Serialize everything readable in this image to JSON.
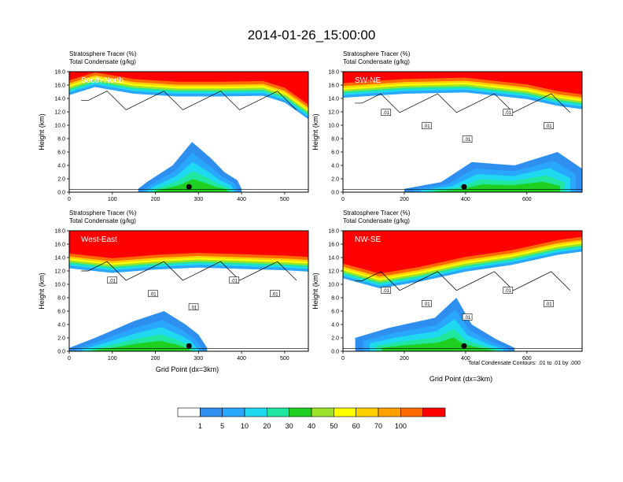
{
  "figure": {
    "title": "2014-01-26_15:00:00",
    "contour_note": "Total Condensate Contours: .01 to .01 by .000"
  },
  "colors": {
    "levels": [
      "#ffffff",
      "#2f8ff0",
      "#29a7ff",
      "#1fd9f0",
      "#20e6a0",
      "#20d020",
      "#9be32b",
      "#ffff00",
      "#ffd000",
      "#ffa000",
      "#ff6a00",
      "#ff0000"
    ]
  },
  "colorbar": {
    "labels": [
      "1",
      "5",
      "10",
      "20",
      "30",
      "40",
      "50",
      "60",
      "70",
      "100"
    ]
  },
  "chart_data": [
    {
      "type": "heatmap",
      "panel_label": "South-North",
      "title_line1": "Stratosphere Tracer   (%)",
      "title_line2": "Total Condensate   (g/kg)",
      "ylabel": "Height (km)",
      "xlabel": "",
      "xlim": [
        0,
        555
      ],
      "ylim": [
        0,
        18
      ],
      "xticks": [
        0,
        100,
        200,
        300,
        400,
        500
      ],
      "yticks": [
        "0.0",
        "2.0",
        "4.0",
        "6.0",
        "8.0",
        "10.0",
        "12.0",
        "14.0",
        "16.0",
        "18.0"
      ],
      "tropopause_km": 15.2,
      "marker_x": 278,
      "contour_labels": [],
      "upper_band": [
        [
          0,
          15.6
        ],
        [
          60,
          16.8
        ],
        [
          150,
          15.8
        ],
        [
          250,
          15.4
        ],
        [
          350,
          15.4
        ],
        [
          450,
          15.5
        ],
        [
          500,
          14.5
        ],
        [
          555,
          12.0
        ]
      ],
      "plume": [
        [
          160,
          0.5
        ],
        [
          180,
          1.5
        ],
        [
          240,
          4.0
        ],
        [
          285,
          7.5
        ],
        [
          330,
          5.0
        ],
        [
          360,
          3.0
        ],
        [
          390,
          1.8
        ],
        [
          400,
          0.5
        ]
      ]
    },
    {
      "type": "heatmap",
      "panel_label": "SW-NE",
      "title_line1": "Stratosphere Tracer   (%)",
      "title_line2": "Total Condensate   (g/kg)",
      "ylabel": "Height (km)",
      "xlabel": "",
      "xlim": [
        0,
        780
      ],
      "ylim": [
        0,
        18
      ],
      "xticks": [
        0,
        200,
        400,
        600
      ],
      "yticks": [
        "0.0",
        "2.0",
        "4.0",
        "6.0",
        "8.0",
        "10.0",
        "12.0",
        "14.0",
        "16.0",
        "18.0"
      ],
      "tropopause_km": 14.8,
      "marker_x": 395,
      "contour_labels": [
        ".01",
        ".01",
        ".01",
        ".01",
        ".01"
      ],
      "upper_band": [
        [
          0,
          15.2
        ],
        [
          200,
          15.8
        ],
        [
          400,
          16.0
        ],
        [
          600,
          15.0
        ],
        [
          700,
          14.0
        ],
        [
          780,
          13.5
        ]
      ],
      "plume": [
        [
          200,
          0.5
        ],
        [
          320,
          1.5
        ],
        [
          420,
          4.5
        ],
        [
          560,
          4.0
        ],
        [
          700,
          6.0
        ],
        [
          780,
          3.5
        ],
        [
          780,
          0.5
        ]
      ]
    },
    {
      "type": "heatmap",
      "panel_label": "West-East",
      "title_line1": "Stratosphere Tracer   (%)",
      "title_line2": "Total Condensate   (g/kg)",
      "ylabel": "Height (km)",
      "xlabel": "Grid Point (dx=3km)",
      "xlim": [
        0,
        555
      ],
      "ylim": [
        0,
        18
      ],
      "xticks": [
        0,
        100,
        200,
        300,
        400,
        500
      ],
      "yticks": [
        "0.0",
        "2.0",
        "4.0",
        "6.0",
        "8.0",
        "10.0",
        "12.0",
        "14.0",
        "16.0",
        "18.0"
      ],
      "tropopause_km": 13.5,
      "marker_x": 278,
      "contour_labels": [
        ".01",
        ".01",
        ".01",
        ".01",
        ".01"
      ],
      "upper_band": [
        [
          0,
          13.5
        ],
        [
          100,
          12.8
        ],
        [
          200,
          13.3
        ],
        [
          300,
          13.6
        ],
        [
          400,
          13.4
        ],
        [
          500,
          13.2
        ],
        [
          555,
          13.0
        ]
      ],
      "plume": [
        [
          0,
          0.5
        ],
        [
          60,
          2.0
        ],
        [
          150,
          4.5
        ],
        [
          220,
          6.0
        ],
        [
          270,
          4.0
        ],
        [
          300,
          2.5
        ],
        [
          320,
          0.5
        ]
      ]
    },
    {
      "type": "heatmap",
      "panel_label": "NW-SE",
      "title_line1": "Stratosphere Tracer   (%)",
      "title_line2": "Total Condensate   (g/kg)",
      "ylabel": "Height (km)",
      "xlabel": "Grid Point (dx=3km)",
      "xlim": [
        0,
        780
      ],
      "ylim": [
        0,
        18
      ],
      "xticks": [
        0,
        200,
        400,
        600
      ],
      "yticks": [
        "0.0",
        "2.0",
        "4.0",
        "6.0",
        "8.0",
        "10.0",
        "12.0",
        "14.0",
        "16.0",
        "18.0"
      ],
      "tropopause_km": 12.0,
      "marker_x": 395,
      "contour_labels": [
        ".01",
        ".01",
        ".01",
        ".01",
        ".01"
      ],
      "upper_band": [
        [
          0,
          12.0
        ],
        [
          120,
          10.5
        ],
        [
          250,
          11.5
        ],
        [
          400,
          13.0
        ],
        [
          550,
          14.0
        ],
        [
          700,
          15.5
        ],
        [
          780,
          16.0
        ]
      ],
      "plume": [
        [
          40,
          2.0
        ],
        [
          150,
          3.5
        ],
        [
          300,
          5.0
        ],
        [
          370,
          8.0
        ],
        [
          420,
          4.0
        ],
        [
          500,
          1.8
        ],
        [
          560,
          0.5
        ]
      ]
    }
  ]
}
